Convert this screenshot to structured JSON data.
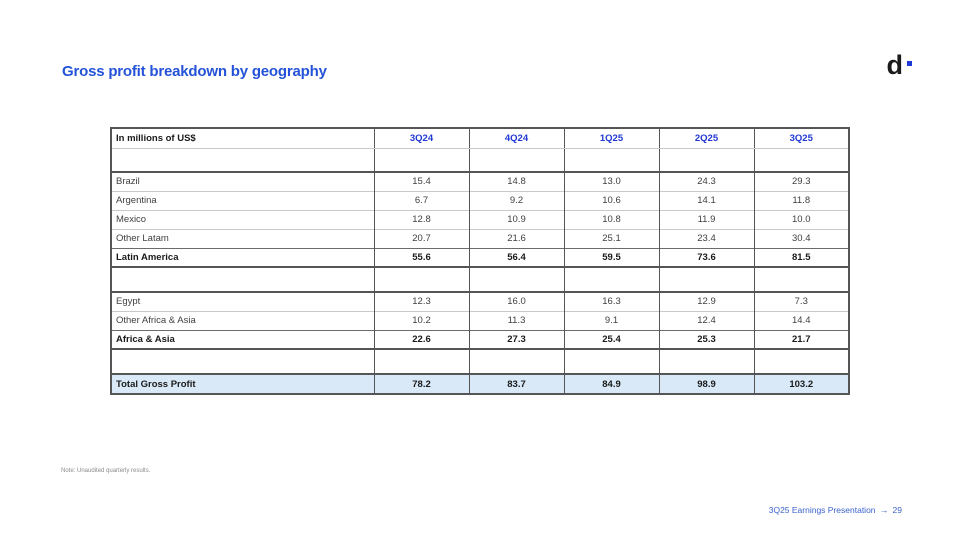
{
  "slide": {
    "title": "Gross profit breakdown by geography",
    "logo_text": "d",
    "note": "Note: Unaudited quarterly results.",
    "footer": {
      "label": "3Q25 Earnings Presentation",
      "arrow": "→",
      "page_number": "29"
    }
  },
  "table": {
    "header": {
      "label_column": "In millions of US$",
      "quarters": [
        "3Q24",
        "4Q24",
        "1Q25",
        "2Q25",
        "3Q25"
      ]
    },
    "rows": [
      {
        "label": "Brazil",
        "style": "data",
        "values": [
          "15.4",
          "14.8",
          "13.0",
          "24.3",
          "29.3"
        ]
      },
      {
        "label": "Argentina",
        "style": "data",
        "values": [
          "6.7",
          "9.2",
          "10.6",
          "14.1",
          "11.8"
        ]
      },
      {
        "label": "Mexico",
        "style": "data",
        "values": [
          "12.8",
          "10.9",
          "10.8",
          "11.9",
          "10.0"
        ]
      },
      {
        "label": "Other Latam",
        "style": "data",
        "values": [
          "20.7",
          "21.6",
          "25.1",
          "23.4",
          "30.4"
        ]
      },
      {
        "label": "Latin America",
        "style": "total",
        "values": [
          "55.6",
          "56.4",
          "59.5",
          "73.6",
          "81.5"
        ]
      },
      {
        "label": "Egypt",
        "style": "data",
        "values": [
          "12.3",
          "16.0",
          "16.3",
          "12.9",
          "7.3"
        ]
      },
      {
        "label": "Other Africa & Asia",
        "style": "data",
        "values": [
          "10.2",
          "11.3",
          "9.1",
          "12.4",
          "14.4"
        ]
      },
      {
        "label": "Africa & Asia",
        "style": "total",
        "values": [
          "22.6",
          "27.3",
          "25.4",
          "25.3",
          "21.7"
        ]
      },
      {
        "label": "Total Gross Profit",
        "style": "grand_total",
        "values": [
          "78.2",
          "83.7",
          "84.9",
          "98.9",
          "103.2"
        ]
      }
    ]
  },
  "colors": {
    "title_blue": "#2453D9",
    "header_blue": "#2038D5",
    "footer_blue": "#3B62CC",
    "grand_total_row_bg": "#D9E9F8",
    "logo_dot_blue": "#2038D5",
    "table_border_dark": "#555555",
    "table_border_light": "#C9C9C9"
  }
}
